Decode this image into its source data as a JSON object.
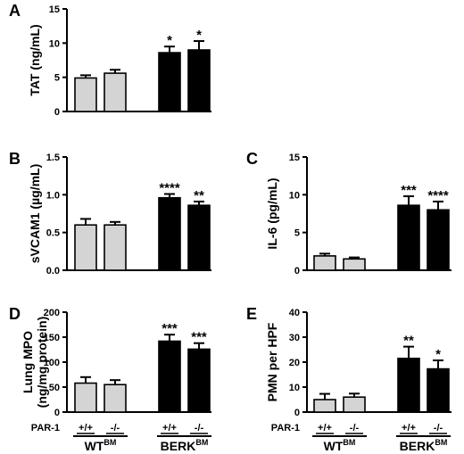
{
  "chart_data": [
    {
      "panel": "A",
      "type": "bar",
      "ylabel": "TAT (ng/mL)",
      "ylim": [
        0,
        15
      ],
      "yticks": [
        "0",
        "5",
        "10",
        "15"
      ],
      "categories": [
        "WT +/+",
        "WT -/-",
        "BERK +/+",
        "BERK -/-"
      ],
      "values": [
        4.9,
        5.6,
        8.6,
        9.0
      ],
      "errors": [
        0.4,
        0.5,
        0.9,
        1.3
      ],
      "significance": [
        "",
        "",
        "*",
        "*"
      ],
      "bar_colors": [
        "#d4d4d4",
        "#d4d4d4",
        "#000000",
        "#000000"
      ]
    },
    {
      "panel": "B",
      "type": "bar",
      "ylabel": "sVCAM1 (µg/mL)",
      "ylim": [
        0,
        1.5
      ],
      "yticks": [
        "0.0",
        "0.5",
        "1.0",
        "1.5"
      ],
      "categories": [
        "WT +/+",
        "WT -/-",
        "BERK +/+",
        "BERK -/-"
      ],
      "values": [
        0.6,
        0.6,
        0.96,
        0.86
      ],
      "errors": [
        0.08,
        0.04,
        0.05,
        0.05
      ],
      "significance": [
        "",
        "",
        "****",
        "**"
      ],
      "bar_colors": [
        "#d4d4d4",
        "#d4d4d4",
        "#000000",
        "#000000"
      ]
    },
    {
      "panel": "C",
      "type": "bar",
      "ylabel": "IL-6 (pg/mL)",
      "ylim": [
        0,
        15
      ],
      "yticks": [
        "0",
        "5",
        "10",
        "15"
      ],
      "categories": [
        "WT +/+",
        "WT -/-",
        "BERK +/+",
        "BERK -/-"
      ],
      "values": [
        1.9,
        1.5,
        8.6,
        8.0
      ],
      "errors": [
        0.3,
        0.2,
        1.2,
        1.1
      ],
      "significance": [
        "",
        "",
        "***",
        "****"
      ],
      "bar_colors": [
        "#d4d4d4",
        "#d4d4d4",
        "#000000",
        "#000000"
      ]
    },
    {
      "panel": "D",
      "type": "bar",
      "ylabel": "Lung MPO",
      "ylabel2": "(ng/mg protein)",
      "ylim": [
        0,
        200
      ],
      "yticks": [
        "0",
        "50",
        "100",
        "150",
        "200"
      ],
      "categories": [
        "WT +/+",
        "WT -/-",
        "BERK +/+",
        "BERK -/-"
      ],
      "values": [
        58,
        55,
        142,
        126
      ],
      "errors": [
        12,
        9,
        13,
        12
      ],
      "significance": [
        "",
        "",
        "***",
        "***"
      ],
      "bar_colors": [
        "#d4d4d4",
        "#d4d4d4",
        "#000000",
        "#000000"
      ]
    },
    {
      "panel": "E",
      "type": "bar",
      "ylabel": "PMN per HPF",
      "ylim": [
        0,
        40
      ],
      "yticks": [
        "0",
        "10",
        "20",
        "30",
        "40"
      ],
      "categories": [
        "WT +/+",
        "WT -/-",
        "BERK +/+",
        "BERK -/-"
      ],
      "values": [
        5.0,
        6.0,
        21.5,
        17.3
      ],
      "errors": [
        2.3,
        1.4,
        4.7,
        3.4
      ],
      "significance": [
        "",
        "",
        "**",
        "*"
      ],
      "bar_colors": [
        "#d4d4d4",
        "#d4d4d4",
        "#000000",
        "#000000"
      ]
    }
  ],
  "genotype": {
    "row_label": "PAR-1",
    "labels": [
      "+/+",
      "-/-",
      "+/+",
      "-/-"
    ]
  },
  "groups": [
    {
      "name": "WT",
      "superscript": "BM"
    },
    {
      "name": "BERK",
      "superscript": "BM"
    }
  ]
}
